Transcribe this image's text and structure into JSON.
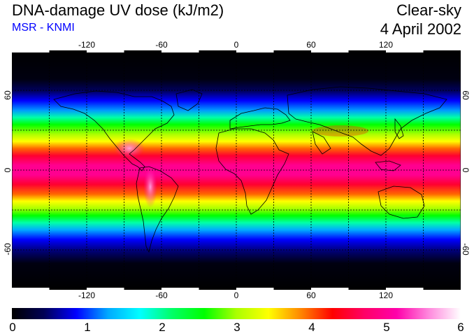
{
  "header": {
    "title": "DNA-damage UV dose (kJ/m2)",
    "subtitle": "MSR - KNMI",
    "subtitle_color": "#0000ff",
    "condition": "Clear-sky",
    "date": "4 April 2002"
  },
  "map": {
    "projection": "equirectangular",
    "lon_range": [
      -180,
      180
    ],
    "lat_range": [
      -90,
      90
    ],
    "lon_ticks": [
      "-120",
      "-60",
      "0",
      "60",
      "120"
    ],
    "lat_ticks": [
      "60",
      "0",
      "-60"
    ],
    "graticule": "dashed every 30 degrees",
    "background_color": "#000000",
    "coastlines_color": "#000000"
  },
  "colorbar": {
    "min": 0,
    "max": 6,
    "labels": [
      "0",
      "1",
      "2",
      "3",
      "4",
      "5",
      "6"
    ],
    "stops": [
      "#000000",
      "#000055",
      "#0000ff",
      "#00aaff",
      "#00ffff",
      "#00ff66",
      "#00ff00",
      "#aaff00",
      "#ffff00",
      "#ff8800",
      "#ff0000",
      "#ff0066",
      "#ff00aa",
      "#ff88dd",
      "#ffffff"
    ]
  }
}
